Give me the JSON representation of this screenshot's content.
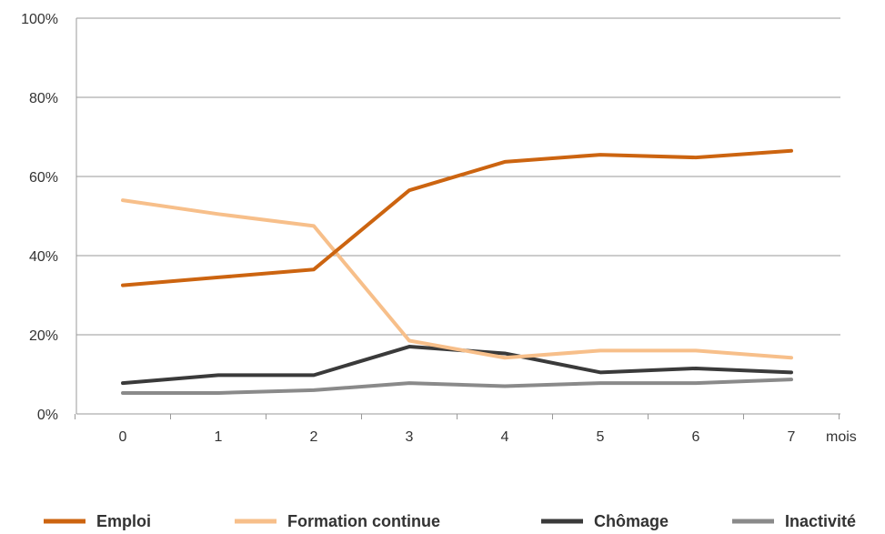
{
  "chart_data": {
    "type": "line",
    "x": [
      0,
      1,
      2,
      3,
      4,
      5,
      6,
      7
    ],
    "x_tick_labels": [
      "0",
      "1",
      "2",
      "3",
      "4",
      "5",
      "6",
      "7"
    ],
    "x_unit_label": "mois",
    "y_tick_labels": [
      "0%",
      "20%",
      "40%",
      "60%",
      "80%",
      "100%"
    ],
    "ylim": [
      0,
      100
    ],
    "grid": true,
    "legend_position": "bottom",
    "series": [
      {
        "name": "Emploi",
        "color": "#cc6410",
        "values": [
          32.5,
          34.5,
          36.5,
          56.5,
          63.7,
          65.5,
          64.8,
          66.5
        ]
      },
      {
        "name": "Formation continue",
        "color": "#f7bf8a",
        "values": [
          54,
          50.5,
          47.5,
          18.5,
          14.2,
          16,
          16,
          14.2
        ]
      },
      {
        "name": "Chômage",
        "color": "#3a3a3a",
        "values": [
          7.8,
          9.8,
          9.8,
          17,
          15.3,
          10.5,
          11.5,
          10.5
        ]
      },
      {
        "name": "Inactivité",
        "color": "#8a8a8a",
        "values": [
          5.3,
          5.3,
          6,
          7.8,
          7,
          7.8,
          7.8,
          8.7
        ]
      }
    ]
  }
}
